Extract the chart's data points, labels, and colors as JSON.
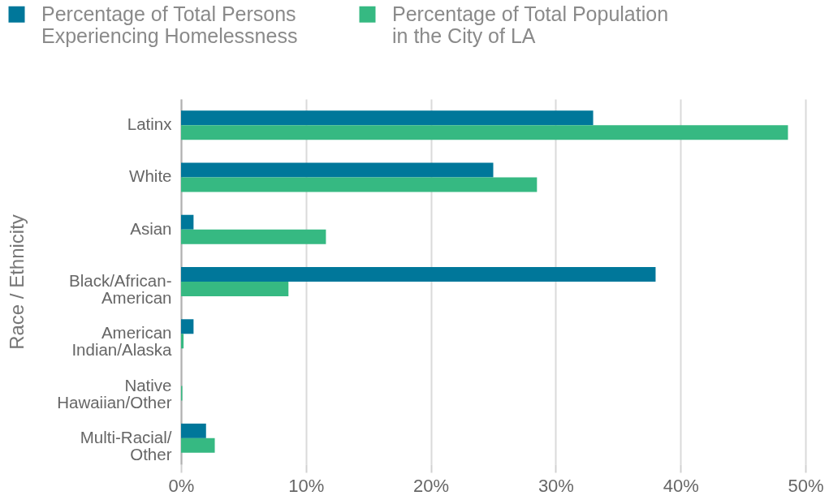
{
  "chart_data": {
    "type": "bar",
    "orientation": "horizontal",
    "ylabel": "Race / Ethnicity",
    "categories": [
      "Latinx",
      "White",
      "Asian",
      "Black/African-American",
      "American Indian/Alaska",
      "Native Hawaiian/Other",
      "Multi-Racial/Other"
    ],
    "series": [
      {
        "name": "Percentage of Total Persons Experiencing Homelessness",
        "color": "#00779a",
        "values": [
          33,
          25,
          1,
          38,
          1,
          0,
          2
        ]
      },
      {
        "name": "Percentage of Total Population in the City of LA",
        "color": "#36b982",
        "values": [
          48.6,
          28.5,
          11.6,
          8.6,
          0.2,
          0.1,
          2.7
        ]
      }
    ],
    "xlim": [
      0,
      50
    ],
    "xticks": [
      {
        "value": 0,
        "label": "0%"
      },
      {
        "value": 10,
        "label": "10%"
      },
      {
        "value": 20,
        "label": "20%"
      },
      {
        "value": 30,
        "label": "30%"
      },
      {
        "value": 40,
        "label": "40%"
      },
      {
        "value": 50,
        "label": "50%"
      }
    ],
    "grid": "x",
    "legend": "top left"
  }
}
